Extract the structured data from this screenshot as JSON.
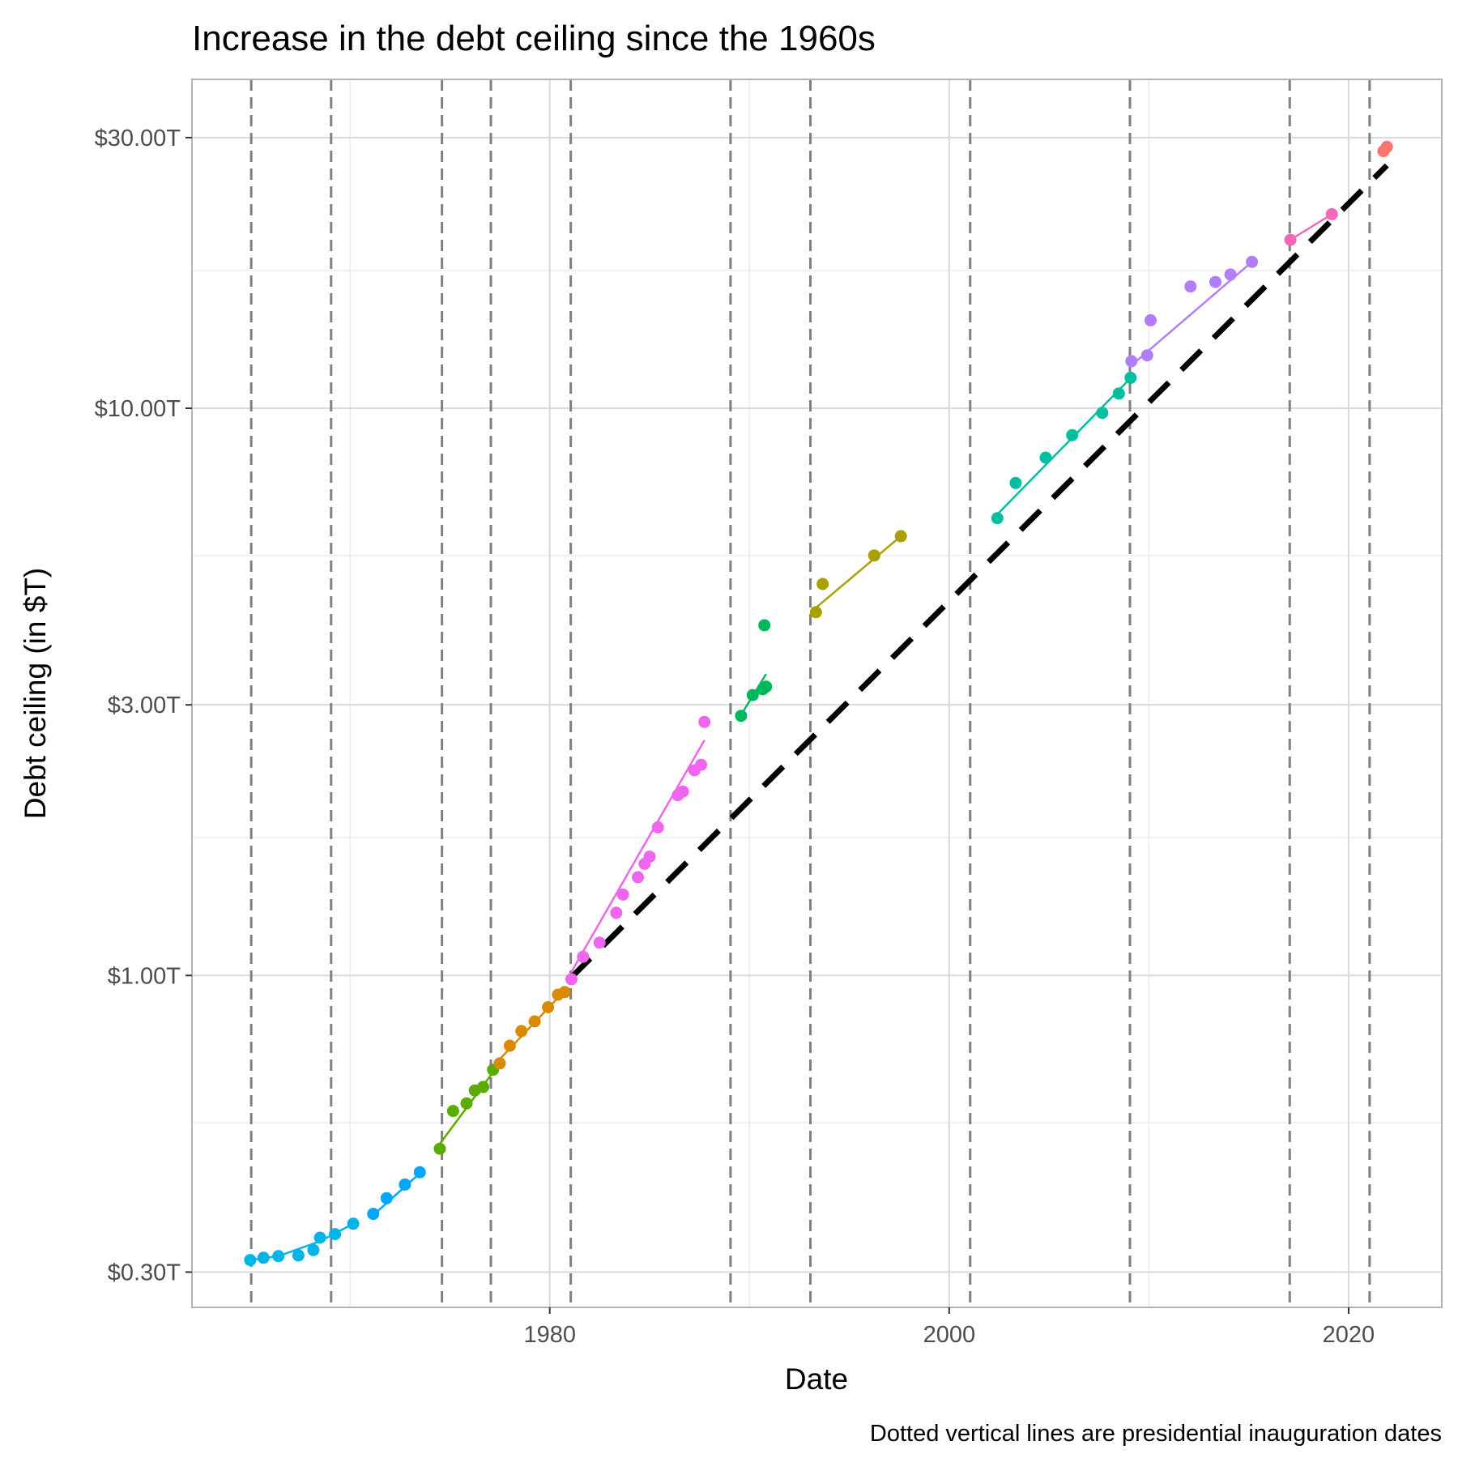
{
  "chart_data": {
    "type": "scatter",
    "title": "Increase in the debt ceiling since the 1960s",
    "xlabel": "Date",
    "ylabel": "Debt ceiling (in $T)",
    "caption": "Dotted vertical lines are presidential inauguration dates",
    "x_scale": "date",
    "y_scale": "log",
    "xlim": [
      "1962-02-01",
      "2024-09-01"
    ],
    "ylim": [
      0.26,
      38
    ],
    "x_ticks": [
      {
        "value": "1980-01-01",
        "label": "1980"
      },
      {
        "value": "2000-01-01",
        "label": "2000"
      },
      {
        "value": "2020-01-01",
        "label": "2020"
      }
    ],
    "y_ticks": [
      {
        "value": 0.3,
        "label": "$0.30T"
      },
      {
        "value": 1,
        "label": "$1.00T"
      },
      {
        "value": 3,
        "label": "$3.00T"
      },
      {
        "value": 10,
        "label": "$10.00T"
      },
      {
        "value": 30,
        "label": "$30.00T"
      }
    ],
    "y_minor_gridlines": [
      0.55,
      1.75,
      5.5,
      17.5
    ],
    "grid": true,
    "legend": "none",
    "inauguration_dates": [
      "1965-01-20",
      "1969-01-20",
      "1974-08-09",
      "1977-01-20",
      "1981-01-20",
      "1989-01-20",
      "1993-01-20",
      "2001-01-20",
      "2009-01-20",
      "2017-01-20",
      "2021-01-20"
    ],
    "series": [
      {
        "color": "#00b4e6",
        "points": [
          [
            "1965-01-01",
            0.315
          ],
          [
            "1965-09-01",
            0.318
          ],
          [
            "1966-06-01",
            0.32
          ],
          [
            "1967-06-01",
            0.321
          ],
          [
            "1968-03-01",
            0.328
          ],
          [
            "1968-07-01",
            0.345
          ],
          [
            "1969-04-01",
            0.35
          ],
          [
            "1970-03-01",
            0.365
          ]
        ]
      },
      {
        "color": "#00a6ff",
        "points": [
          [
            "1971-03-01",
            0.38
          ],
          [
            "1971-11-01",
            0.405
          ],
          [
            "1972-10-01",
            0.428
          ],
          [
            "1973-07-01",
            0.45
          ]
        ]
      },
      {
        "color": "#5aac00",
        "points": [
          [
            "1974-07-01",
            0.495
          ],
          [
            "1975-03-01",
            0.577
          ],
          [
            "1975-11-01",
            0.595
          ],
          [
            "1976-04-01",
            0.627
          ],
          [
            "1976-09-01",
            0.636
          ],
          [
            "1977-03-01",
            0.682
          ]
        ]
      },
      {
        "color": "#da8a00",
        "points": [
          [
            "1977-07-01",
            0.7
          ],
          [
            "1978-01-01",
            0.752
          ],
          [
            "1978-08-01",
            0.798
          ],
          [
            "1979-04-01",
            0.83
          ],
          [
            "1979-12-01",
            0.879
          ],
          [
            "1980-06-01",
            0.925
          ],
          [
            "1980-10-01",
            0.935
          ]
        ]
      },
      {
        "color": "#ee66ee",
        "points": [
          [
            "1981-02-01",
            0.985
          ],
          [
            "1981-09-01",
            1.079
          ],
          [
            "1982-07-01",
            1.143
          ],
          [
            "1983-05-01",
            1.29
          ],
          [
            "1983-09-01",
            1.389
          ],
          [
            "1984-06-01",
            1.49
          ],
          [
            "1984-10-01",
            1.573
          ],
          [
            "1985-01-01",
            1.62
          ],
          [
            "1985-06-01",
            1.824
          ],
          [
            "1986-06-01",
            2.079
          ],
          [
            "1986-09-01",
            2.11
          ],
          [
            "1987-04-01",
            2.3
          ],
          [
            "1987-08-01",
            2.352
          ],
          [
            "1987-10-01",
            2.8
          ]
        ]
      },
      {
        "color": "#00b85c",
        "points": [
          [
            "1989-08-01",
            2.87
          ],
          [
            "1990-03-01",
            3.122
          ],
          [
            "1990-09-01",
            3.195
          ],
          [
            "1990-11-01",
            3.23
          ],
          [
            "1990-10-01",
            4.145
          ]
        ]
      },
      {
        "color": "#a8a100",
        "points": [
          [
            "1993-05-01",
            4.37
          ],
          [
            "1993-09-01",
            4.9
          ],
          [
            "1996-04-01",
            5.5
          ],
          [
            "1997-08-01",
            5.95
          ]
        ]
      },
      {
        "color": "#00bea0",
        "points": [
          [
            "2002-06-01",
            6.4
          ],
          [
            "2003-05-01",
            7.384
          ],
          [
            "2004-11-01",
            8.184
          ],
          [
            "2006-03-01",
            8.965
          ],
          [
            "2007-09-01",
            9.815
          ],
          [
            "2008-07-01",
            10.615
          ],
          [
            "2009-02-01",
            11.315
          ]
        ]
      },
      {
        "color": "#b17ef8",
        "points": [
          [
            "2009-02-15",
            12.104
          ],
          [
            "2009-12-01",
            12.394
          ],
          [
            "2010-02-01",
            14.294
          ],
          [
            "2012-02-01",
            16.394
          ],
          [
            "2013-05-01",
            16.699
          ],
          [
            "2014-02-01",
            17.212
          ],
          [
            "2015-03-01",
            18.113
          ]
        ]
      },
      {
        "color": "#f567b9",
        "points": [
          [
            "2017-02-01",
            19.809
          ],
          [
            "2019-03-01",
            21.988
          ]
        ]
      },
      {
        "color": "#f8766d",
        "points": [
          [
            "2021-10-01",
            28.4
          ],
          [
            "2021-12-01",
            28.9
          ]
        ]
      }
    ],
    "series_fits": [
      {
        "color": "#00b4e6",
        "points": [
          [
            "1965-01-01",
            0.315
          ],
          [
            "1966-06-01",
            0.32
          ],
          [
            "1968-07-01",
            0.34
          ],
          [
            "1970-03-01",
            0.365
          ]
        ]
      },
      {
        "color": "#00a6ff",
        "points": [
          [
            "1971-03-01",
            0.378
          ],
          [
            "1973-07-01",
            0.448
          ]
        ]
      },
      {
        "color": "#5aac00",
        "points": [
          [
            "1974-07-01",
            0.505
          ],
          [
            "1977-03-01",
            0.675
          ]
        ]
      },
      {
        "color": "#da8a00",
        "points": [
          [
            "1977-07-01",
            0.712
          ],
          [
            "1980-10-01",
            0.94
          ]
        ]
      },
      {
        "color": "#ee66ee",
        "points": [
          [
            "1981-02-01",
            1.015
          ],
          [
            "1987-10-01",
            2.6
          ]
        ]
      },
      {
        "color": "#00b85c",
        "points": [
          [
            "1989-08-01",
            2.88
          ],
          [
            "1990-11-01",
            3.4
          ]
        ]
      },
      {
        "color": "#a8a100",
        "points": [
          [
            "1993-05-01",
            4.45
          ],
          [
            "1997-08-01",
            5.95
          ]
        ]
      },
      {
        "color": "#00bea0",
        "points": [
          [
            "2002-06-01",
            6.5
          ],
          [
            "2009-02-01",
            11.3
          ]
        ]
      },
      {
        "color": "#b17ef8",
        "points": [
          [
            "2009-02-15",
            11.9
          ],
          [
            "2015-03-01",
            18.113
          ]
        ]
      },
      {
        "color": "#f567b9",
        "points": [
          [
            "2017-02-01",
            19.809
          ],
          [
            "2019-03-01",
            21.988
          ]
        ]
      },
      {
        "color": "#f8766d",
        "points": [
          [
            "2021-10-01",
            28.4
          ],
          [
            "2021-12-01",
            28.9
          ]
        ]
      }
    ],
    "trend_line": {
      "color": "#000000",
      "style": "dashed",
      "points": [
        [
          "1981-01-20",
          0.99
        ],
        [
          "2021-12-01",
          26.8
        ]
      ]
    }
  }
}
